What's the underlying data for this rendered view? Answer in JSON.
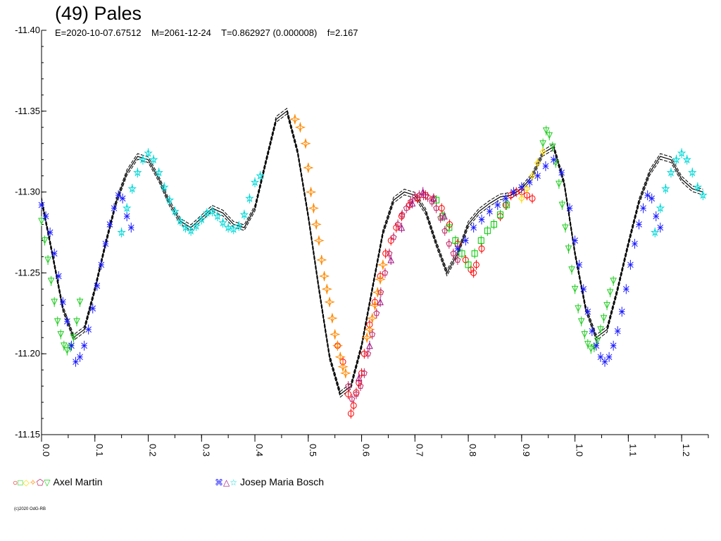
{
  "header": {
    "title": "(49) Pales",
    "subtitle": "E=2020-10-07.67512    M=2061-12-24    T=0.862927 (0.000008)    f=2.167"
  },
  "legend": [
    {
      "symbols": "○□◇✧⬠▽",
      "symbol_colors": [
        "#ff0000",
        "#00cc00",
        "#ffd800",
        "#ff8800",
        "#c02060",
        "#22cc22"
      ],
      "name": "Axel Martin"
    },
    {
      "symbols": "⌘△☆",
      "symbol_colors": [
        "#1a1aff",
        "#a01080",
        "#00d8d8"
      ],
      "name": "Josep Maria Bosch"
    }
  ],
  "copyright": "(c)2020 OdG-RB",
  "colors": {
    "fit_curve": "#000000",
    "axis": "#000000"
  },
  "chart_data": {
    "type": "scatter",
    "title": "(49) Pales",
    "xlabel": "",
    "ylabel": "",
    "xlim": [
      0.0,
      1.25
    ],
    "ylim": [
      -11.4,
      -11.15
    ],
    "y_inverted": true,
    "x_ticks": [
      "0.0",
      "0.1",
      "0.2",
      "0.3",
      "0.4",
      "0.5",
      "0.6",
      "0.7",
      "0.8",
      "0.9",
      "1.0",
      "1.1",
      "1.2"
    ],
    "y_ticks": [
      "-11.40",
      "-11.35",
      "-11.30",
      "-11.25",
      "-11.20",
      "-11.15"
    ],
    "grid": false,
    "fit_curve": {
      "x": [
        0.0,
        0.02,
        0.04,
        0.06,
        0.08,
        0.1,
        0.12,
        0.14,
        0.16,
        0.18,
        0.2,
        0.22,
        0.24,
        0.26,
        0.28,
        0.3,
        0.32,
        0.34,
        0.36,
        0.38,
        0.4,
        0.42,
        0.44,
        0.46,
        0.48,
        0.5,
        0.52,
        0.54,
        0.56,
        0.58,
        0.6,
        0.62,
        0.64,
        0.66,
        0.68,
        0.7,
        0.72,
        0.74,
        0.76,
        0.78,
        0.8,
        0.82,
        0.84,
        0.86,
        0.88,
        0.9,
        0.92,
        0.94,
        0.96,
        0.98,
        1.0,
        1.02,
        1.04,
        1.06,
        1.08,
        1.1,
        1.12,
        1.14,
        1.16,
        1.18,
        1.2,
        1.22,
        1.24
      ],
      "y": [
        -11.295,
        -11.262,
        -11.228,
        -11.21,
        -11.215,
        -11.24,
        -11.268,
        -11.294,
        -11.312,
        -11.322,
        -11.32,
        -11.308,
        -11.293,
        -11.282,
        -11.278,
        -11.284,
        -11.29,
        -11.287,
        -11.28,
        -11.278,
        -11.29,
        -11.318,
        -11.345,
        -11.35,
        -11.325,
        -11.285,
        -11.24,
        -11.198,
        -11.175,
        -11.18,
        -11.205,
        -11.24,
        -11.275,
        -11.295,
        -11.3,
        -11.298,
        -11.288,
        -11.268,
        -11.25,
        -11.262,
        -11.28,
        -11.288,
        -11.293,
        -11.297,
        -11.298,
        -11.302,
        -11.31,
        -11.324,
        -11.328,
        -11.305,
        -11.262,
        -11.228,
        -11.21,
        -11.215,
        -11.24,
        -11.268,
        -11.294,
        -11.312,
        -11.322,
        -11.32,
        -11.308,
        -11.302,
        -11.3
      ]
    },
    "series": [
      {
        "name": "Axel Martin",
        "marker": "circle",
        "color": "#ff0000",
        "x": [
          0.555,
          0.565,
          0.575,
          0.58,
          0.585,
          0.59,
          0.595,
          0.6,
          0.605,
          0.615,
          0.625,
          0.635,
          0.645,
          0.655,
          0.665,
          0.675,
          0.69,
          0.705,
          0.72,
          0.735,
          0.75,
          0.765,
          0.78,
          0.795,
          0.805,
          0.81,
          0.815,
          0.825,
          0.86,
          0.87,
          0.88,
          0.89,
          0.9,
          0.91,
          0.92
        ],
        "y": [
          -11.205,
          -11.195,
          -11.175,
          -11.163,
          -11.168,
          -11.176,
          -11.182,
          -11.188,
          -11.2,
          -11.218,
          -11.232,
          -11.248,
          -11.262,
          -11.27,
          -11.278,
          -11.285,
          -11.292,
          -11.296,
          -11.298,
          -11.296,
          -11.29,
          -11.28,
          -11.268,
          -11.258,
          -11.252,
          -11.25,
          -11.255,
          -11.265,
          -11.285,
          -11.292,
          -11.298,
          -11.3,
          -11.3,
          -11.298,
          -11.296
        ]
      },
      {
        "name": "Axel Martin",
        "marker": "square",
        "color": "#00cc00",
        "x": [
          0.74,
          0.752,
          0.764,
          0.776,
          0.788,
          0.8,
          0.812,
          0.824,
          0.836,
          0.848,
          0.86,
          0.872
        ],
        "y": [
          -11.295,
          -11.285,
          -11.278,
          -11.27,
          -11.262,
          -11.255,
          -11.262,
          -11.27,
          -11.276,
          -11.28,
          -11.286,
          -11.292
        ]
      },
      {
        "name": "Axel Martin",
        "marker": "diamond",
        "color": "#ffd800",
        "x": [
          0.9,
          0.91,
          0.92,
          0.93,
          0.94
        ],
        "y": [
          -11.296,
          -11.302,
          -11.31,
          -11.318,
          -11.325
        ]
      },
      {
        "name": "Axel Martin",
        "marker": "star4",
        "color": "#ff8800",
        "x": [
          0.475,
          0.485,
          0.495,
          0.5,
          0.505,
          0.51,
          0.515,
          0.52,
          0.525,
          0.53,
          0.535,
          0.54,
          0.545,
          0.55,
          0.555,
          0.56,
          0.565,
          0.57,
          0.61,
          0.615,
          0.62,
          0.625,
          0.63,
          0.635,
          0.64
        ],
        "y": [
          -11.345,
          -11.34,
          -11.33,
          -11.315,
          -11.3,
          -11.29,
          -11.28,
          -11.27,
          -11.258,
          -11.248,
          -11.24,
          -11.232,
          -11.222,
          -11.212,
          -11.205,
          -11.198,
          -11.192,
          -11.188,
          -11.21,
          -11.215,
          -11.222,
          -11.23,
          -11.238,
          -11.246,
          -11.255
        ]
      },
      {
        "name": "Axel Martin",
        "marker": "pentagon",
        "color": "#c02060",
        "x": [
          0.575,
          0.582,
          0.59,
          0.598,
          0.605,
          0.612,
          0.62,
          0.628,
          0.636,
          0.644,
          0.652,
          0.66,
          0.668,
          0.676,
          0.684,
          0.692,
          0.7,
          0.708,
          0.716,
          0.724,
          0.732,
          0.74,
          0.748,
          0.756,
          0.764,
          0.772,
          0.78
        ],
        "y": [
          -11.18,
          -11.172,
          -11.175,
          -11.18,
          -11.188,
          -11.2,
          -11.212,
          -11.225,
          -11.238,
          -11.25,
          -11.262,
          -11.272,
          -11.28,
          -11.286,
          -11.29,
          -11.294,
          -11.297,
          -11.298,
          -11.298,
          -11.297,
          -11.294,
          -11.29,
          -11.284,
          -11.276,
          -11.268,
          -11.262,
          -11.258
        ]
      },
      {
        "name": "Axel Martin",
        "marker": "triangle-down",
        "color": "#22cc22",
        "x": [
          0.0,
          0.006,
          0.012,
          0.018,
          0.024,
          0.03,
          0.036,
          0.042,
          0.048,
          0.054,
          0.06,
          0.066,
          0.072,
          0.94,
          0.946,
          0.952,
          0.958,
          0.964,
          0.97,
          0.976,
          0.982,
          0.988,
          0.994,
          1.0,
          1.006,
          1.012,
          1.018,
          1.024,
          1.03,
          1.036,
          1.042,
          1.048,
          1.054,
          1.06,
          1.066,
          1.072
        ],
        "y": [
          -11.282,
          -11.27,
          -11.258,
          -11.245,
          -11.232,
          -11.22,
          -11.212,
          -11.205,
          -11.202,
          -11.204,
          -11.21,
          -11.22,
          -11.232,
          -11.33,
          -11.338,
          -11.335,
          -11.328,
          -11.318,
          -11.305,
          -11.292,
          -11.278,
          -11.265,
          -11.252,
          -11.24,
          -11.228,
          -11.22,
          -11.212,
          -11.206,
          -11.203,
          -11.204,
          -11.208,
          -11.215,
          -11.222,
          -11.23,
          -11.238,
          -11.245
        ]
      },
      {
        "name": "Josep Maria Bosch",
        "marker": "crossbox",
        "color": "#1a1aff",
        "x": [
          0.0,
          0.008,
          0.016,
          0.024,
          0.032,
          0.04,
          0.048,
          0.056,
          0.064,
          0.072,
          0.08,
          0.088,
          0.096,
          0.104,
          0.112,
          0.12,
          0.128,
          0.136,
          0.144,
          0.152,
          0.16,
          0.168,
          0.78,
          0.795,
          0.81,
          0.825,
          0.84,
          0.855,
          0.87,
          0.885,
          0.9,
          0.915,
          0.93,
          0.945,
          0.96,
          0.975,
          0.99,
          1.0,
          1.008,
          1.016,
          1.024,
          1.032,
          1.04,
          1.048,
          1.056,
          1.064,
          1.072,
          1.08,
          1.088,
          1.096,
          1.104,
          1.112,
          1.12,
          1.128,
          1.136,
          1.144,
          1.152,
          1.16
        ],
        "y": [
          -11.292,
          -11.285,
          -11.275,
          -11.262,
          -11.248,
          -11.232,
          -11.22,
          -11.205,
          -11.195,
          -11.198,
          -11.205,
          -11.215,
          -11.228,
          -11.242,
          -11.255,
          -11.268,
          -11.28,
          -11.29,
          -11.298,
          -11.296,
          -11.285,
          -11.278,
          -11.265,
          -11.27,
          -11.278,
          -11.283,
          -11.288,
          -11.292,
          -11.296,
          -11.3,
          -11.303,
          -11.306,
          -11.31,
          -11.316,
          -11.32,
          -11.312,
          -11.29,
          -11.27,
          -11.255,
          -11.24,
          -11.226,
          -11.214,
          -11.205,
          -11.198,
          -11.195,
          -11.198,
          -11.205,
          -11.214,
          -11.226,
          -11.24,
          -11.255,
          -11.268,
          -11.28,
          -11.29,
          -11.298,
          -11.296,
          -11.285,
          -11.278
        ]
      },
      {
        "name": "Josep Maria Bosch",
        "marker": "triangle-up",
        "color": "#a01080",
        "x": [
          0.595,
          0.615,
          0.635,
          0.655,
          0.675,
          0.695,
          0.715,
          0.735,
          0.755
        ],
        "y": [
          -11.185,
          -11.205,
          -11.232,
          -11.258,
          -11.278,
          -11.293,
          -11.3,
          -11.296,
          -11.285
        ]
      },
      {
        "name": "Josep Maria Bosch",
        "marker": "star",
        "color": "#00d8d8",
        "x": [
          0.15,
          0.16,
          0.17,
          0.18,
          0.19,
          0.2,
          0.21,
          0.22,
          0.23,
          0.24,
          0.25,
          0.26,
          0.27,
          0.28,
          0.29,
          0.3,
          0.31,
          0.32,
          0.33,
          0.34,
          0.35,
          0.36,
          0.37,
          0.38,
          0.39,
          0.4,
          0.41,
          1.15,
          1.16,
          1.17,
          1.18,
          1.19,
          1.2,
          1.21,
          1.22,
          1.23,
          1.24
        ],
        "y": [
          -11.275,
          -11.29,
          -11.302,
          -11.312,
          -11.32,
          -11.324,
          -11.32,
          -11.312,
          -11.303,
          -11.295,
          -11.288,
          -11.282,
          -11.278,
          -11.276,
          -11.279,
          -11.283,
          -11.287,
          -11.288,
          -11.285,
          -11.281,
          -11.278,
          -11.277,
          -11.279,
          -11.286,
          -11.296,
          -11.306,
          -11.31,
          -11.275,
          -11.29,
          -11.302,
          -11.312,
          -11.32,
          -11.324,
          -11.32,
          -11.312,
          -11.303,
          -11.298
        ]
      }
    ]
  }
}
